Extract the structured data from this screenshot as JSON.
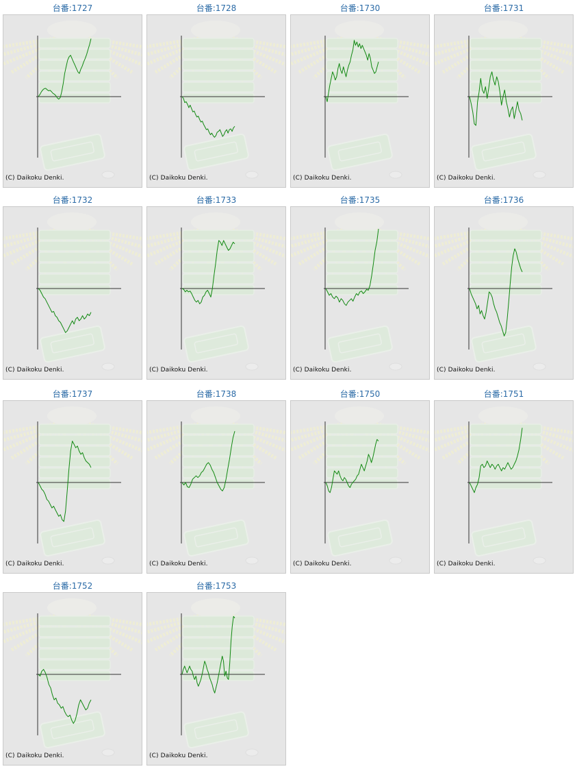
{
  "page": {
    "copyright": "(C) Daikoku Denki."
  },
  "colors": {
    "title": "#2a6aa6",
    "line": "#118811",
    "axis": "#333333",
    "background": "#e6e6e6",
    "border": "#c9c9c9"
  },
  "chart_data": [
    {
      "type": "line",
      "title": "台番:1727",
      "grid": false,
      "values": [
        0,
        120,
        280,
        400,
        480,
        500,
        420,
        350,
        380,
        300,
        200,
        150,
        50,
        -80,
        -150,
        -50,
        300,
        800,
        1400,
        1800,
        2200,
        2400,
        2500,
        2300,
        2100,
        1900,
        1700,
        1500,
        1400,
        1650,
        1850,
        2100,
        2300,
        2550,
        2850,
        3150,
        3500
      ]
    },
    {
      "type": "line",
      "title": "台番:1728",
      "grid": false,
      "values": [
        0,
        -100,
        -350,
        -300,
        -450,
        -650,
        -500,
        -700,
        -900,
        -850,
        -1050,
        -1200,
        -1150,
        -1350,
        -1500,
        -1450,
        -1650,
        -1800,
        -1950,
        -1900,
        -2100,
        -2250,
        -2150,
        -2300,
        -2400,
        -2300,
        -2100,
        -2050,
        -1950,
        -2150,
        -2350,
        -2250,
        -2050,
        -1950,
        -2150,
        -1950,
        -1900,
        -2050,
        -1850,
        -1750
      ]
    },
    {
      "type": "line",
      "title": "台番:1730",
      "grid": false,
      "values": [
        0,
        -300,
        200,
        700,
        1100,
        1500,
        1300,
        1000,
        1200,
        1700,
        2000,
        1600,
        1400,
        1800,
        1500,
        1200,
        1600,
        1900,
        2100,
        2500,
        2800,
        3400,
        3100,
        3300,
        3000,
        3200,
        2900,
        3100,
        2900,
        2700,
        2500,
        2200,
        2600,
        2300,
        1800,
        1600,
        1400,
        1500,
        1800,
        2100
      ]
    },
    {
      "type": "line",
      "title": "台番:1731",
      "grid": false,
      "values": [
        0,
        -400,
        -900,
        -1600,
        -1700,
        -300,
        300,
        1100,
        400,
        200,
        600,
        -100,
        500,
        1200,
        1500,
        1000,
        700,
        1200,
        900,
        300,
        -500,
        0,
        400,
        -300,
        -700,
        -1200,
        -800,
        -600,
        -1300,
        -800,
        -300,
        -800,
        -1000,
        -1400
      ]
    },
    {
      "type": "line",
      "title": "台番:1732",
      "grid": false,
      "values": [
        0,
        -100,
        -300,
        -500,
        -600,
        -800,
        -1000,
        -1200,
        -1400,
        -1350,
        -1600,
        -1700,
        -1900,
        -2000,
        -2200,
        -2400,
        -2600,
        -2500,
        -2300,
        -2100,
        -1900,
        -2100,
        -1800,
        -1700,
        -1900,
        -1800,
        -1600,
        -1800,
        -1700,
        -1500,
        -1600,
        -1400
      ]
    },
    {
      "type": "line",
      "title": "台番:1733",
      "grid": false,
      "values": [
        0,
        -50,
        -200,
        -100,
        -200,
        -150,
        -300,
        -500,
        -700,
        -800,
        -700,
        -900,
        -800,
        -500,
        -400,
        -200,
        -100,
        -300,
        -500,
        0,
        800,
        1500,
        2300,
        2900,
        2800,
        2600,
        2900,
        2700,
        2500,
        2300,
        2400,
        2600,
        2800,
        2700
      ]
    },
    {
      "type": "line",
      "title": "台番:1735",
      "grid": false,
      "values": [
        0,
        -200,
        -400,
        -300,
        -500,
        -600,
        -450,
        -550,
        -800,
        -600,
        -700,
        -900,
        -1000,
        -800,
        -700,
        -600,
        -750,
        -500,
        -300,
        -400,
        -200,
        -150,
        -300,
        -200,
        -50,
        -100,
        200,
        800,
        1500,
        2300,
        2800,
        3600
      ]
    },
    {
      "type": "line",
      "title": "台番:1736",
      "grid": false,
      "values": [
        0,
        -300,
        -500,
        -700,
        -900,
        -1200,
        -1000,
        -1500,
        -1300,
        -1600,
        -1800,
        -1400,
        -800,
        -200,
        -300,
        -500,
        -900,
        -1200,
        -1400,
        -1700,
        -2000,
        -2200,
        -2500,
        -2800,
        -2600,
        -1800,
        -800,
        300,
        1300,
        2000,
        2400,
        2200,
        1800,
        1500,
        1200,
        1000
      ]
    },
    {
      "type": "line",
      "title": "台番:1737",
      "grid": false,
      "values": [
        0,
        -200,
        -400,
        -500,
        -700,
        -1000,
        -1100,
        -1300,
        -1500,
        -1400,
        -1600,
        -1800,
        -2000,
        -1900,
        -2200,
        -2300,
        -1700,
        -500,
        800,
        1900,
        2500,
        2300,
        2100,
        2200,
        1900,
        1700,
        1800,
        1500,
        1300,
        1200,
        1100,
        900
      ]
    },
    {
      "type": "line",
      "title": "台番:1738",
      "grid": false,
      "values": [
        0,
        -150,
        0,
        -250,
        -300,
        -100,
        200,
        300,
        400,
        300,
        400,
        600,
        700,
        900,
        1100,
        1200,
        1050,
        800,
        600,
        300,
        0,
        -200,
        -400,
        -500,
        -300,
        200,
        800,
        1400,
        2100,
        2700,
        3100
      ]
    },
    {
      "type": "line",
      "title": "台番:1750",
      "grid": false,
      "values": [
        0,
        -200,
        -500,
        -600,
        -300,
        200,
        700,
        600,
        500,
        700,
        400,
        200,
        100,
        300,
        200,
        0,
        -200,
        -300,
        -100,
        0,
        100,
        200,
        400,
        500,
        800,
        1100,
        900,
        700,
        1000,
        1300,
        1700,
        1500,
        1200,
        1500,
        1900,
        2300,
        2600,
        2500
      ]
    },
    {
      "type": "line",
      "title": "台番:1751",
      "grid": false,
      "values": [
        0,
        -200,
        -400,
        -600,
        -300,
        -100,
        300,
        1000,
        1100,
        900,
        1000,
        1300,
        1100,
        900,
        1100,
        1000,
        800,
        1000,
        1100,
        900,
        700,
        900,
        800,
        1000,
        1200,
        1000,
        800,
        900,
        1100,
        1300,
        1600,
        2000,
        2600,
        3300
      ]
    },
    {
      "type": "line",
      "title": "台番:1752",
      "grid": false,
      "values": [
        0,
        -100,
        200,
        300,
        100,
        -200,
        -600,
        -800,
        -1200,
        -1500,
        -1400,
        -1700,
        -1800,
        -2000,
        -1900,
        -2200,
        -2400,
        -2500,
        -2400,
        -2700,
        -2900,
        -2700,
        -2300,
        -1800,
        -1500,
        -1700,
        -1900,
        -2100,
        -2000,
        -1700,
        -1500
      ]
    },
    {
      "type": "line",
      "title": "台番:1753",
      "grid": false,
      "values": [
        0,
        300,
        500,
        300,
        100,
        300,
        500,
        300,
        200,
        -100,
        -300,
        -100,
        -500,
        -700,
        -500,
        -300,
        0,
        400,
        800,
        600,
        300,
        100,
        -200,
        -400,
        -600,
        -900,
        -1100,
        -800,
        -500,
        -100,
        300,
        700,
        1100,
        800,
        -100,
        200,
        -200,
        -300,
        700,
        2000,
        2900,
        3500,
        3400
      ]
    }
  ]
}
